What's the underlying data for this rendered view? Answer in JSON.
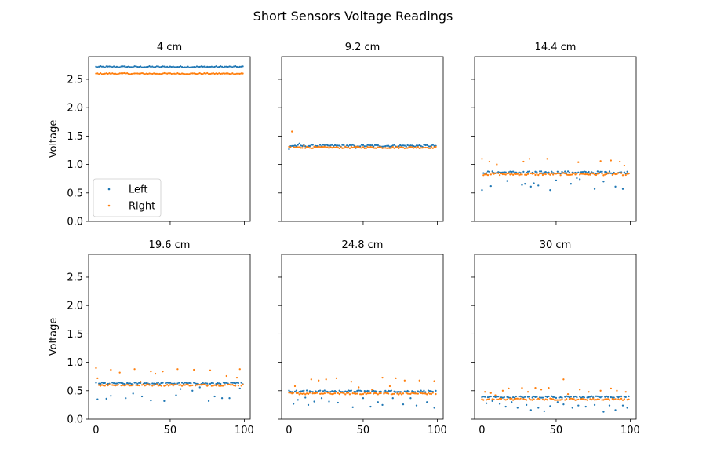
{
  "title": "Short Sensors Voltage Readings",
  "colors": {
    "left": "#1f77b4",
    "right": "#ff7f0e"
  },
  "chart_data": {
    "type": "scatter",
    "title": "Short Sensors Voltage Readings",
    "layout": "2x3 subplots, shared y-axis",
    "ylabel": "Voltage",
    "xlim": [
      -5,
      104
    ],
    "ylim": [
      0,
      2.9
    ],
    "xticks": [
      0,
      50,
      100
    ],
    "yticks": [
      0.0,
      0.5,
      1.0,
      1.5,
      2.0,
      2.5
    ],
    "ytick_labels": [
      "0.0",
      "0.5",
      "1.0",
      "1.5",
      "2.0",
      "2.5"
    ],
    "legend": {
      "placement": "lower-left (first subplot)",
      "entries": [
        "Left",
        "Right"
      ]
    },
    "n_samples": 100,
    "series_names": [
      "Left",
      "Right"
    ],
    "panels": [
      {
        "title": "4 cm",
        "left": {
          "base": 2.72,
          "jitter": 0.012,
          "outliers": []
        },
        "right": {
          "base": 2.6,
          "jitter": 0.01,
          "outliers": []
        }
      },
      {
        "title": "9.2 cm",
        "left": {
          "base": 1.33,
          "jitter": 0.018,
          "outliers": [
            [
              0,
              1.27
            ],
            [
              7,
              1.37
            ],
            [
              45,
              1.29
            ]
          ]
        },
        "right": {
          "base": 1.3,
          "jitter": 0.015,
          "outliers": [
            [
              2,
              1.58
            ],
            [
              10,
              1.33
            ]
          ]
        }
      },
      {
        "title": "14.4 cm",
        "left": {
          "base": 0.86,
          "jitter": 0.02,
          "outliers": [
            [
              0,
              0.55
            ],
            [
              6,
              0.62
            ],
            [
              17,
              0.71
            ],
            [
              27,
              0.64
            ],
            [
              29,
              0.66
            ],
            [
              33,
              0.61
            ],
            [
              35,
              0.67
            ],
            [
              38,
              0.63
            ],
            [
              46,
              0.55
            ],
            [
              50,
              0.72
            ],
            [
              60,
              0.66
            ],
            [
              64,
              0.76
            ],
            [
              66,
              0.74
            ],
            [
              76,
              0.57
            ],
            [
              82,
              0.7
            ],
            [
              90,
              0.61
            ],
            [
              95,
              0.57
            ]
          ]
        },
        "right": {
          "base": 0.83,
          "jitter": 0.02,
          "outliers": [
            [
              0,
              1.1
            ],
            [
              5,
              1.05
            ],
            [
              10,
              1.0
            ],
            [
              28,
              1.05
            ],
            [
              32,
              1.1
            ],
            [
              44,
              1.1
            ],
            [
              65,
              1.04
            ],
            [
              80,
              1.06
            ],
            [
              87,
              1.07
            ],
            [
              93,
              1.05
            ],
            [
              96,
              0.98
            ]
          ]
        }
      },
      {
        "title": "19.6 cm",
        "left": {
          "base": 0.63,
          "jitter": 0.015,
          "outliers": [
            [
              1,
              0.35
            ],
            [
              7,
              0.36
            ],
            [
              10,
              0.41
            ],
            [
              20,
              0.37
            ],
            [
              25,
              0.45
            ],
            [
              31,
              0.4
            ],
            [
              37,
              0.33
            ],
            [
              46,
              0.32
            ],
            [
              54,
              0.42
            ],
            [
              57,
              0.53
            ],
            [
              65,
              0.5
            ],
            [
              70,
              0.56
            ],
            [
              76,
              0.32
            ],
            [
              80,
              0.4
            ],
            [
              85,
              0.37
            ],
            [
              90,
              0.37
            ],
            [
              97,
              0.54
            ]
          ]
        },
        "right": {
          "base": 0.6,
          "jitter": 0.015,
          "outliers": [
            [
              0,
              0.9
            ],
            [
              1,
              0.72
            ],
            [
              10,
              0.87
            ],
            [
              16,
              0.82
            ],
            [
              26,
              0.88
            ],
            [
              30,
              0.66
            ],
            [
              37,
              0.84
            ],
            [
              40,
              0.8
            ],
            [
              45,
              0.84
            ],
            [
              55,
              0.88
            ],
            [
              66,
              0.87
            ],
            [
              77,
              0.86
            ],
            [
              88,
              0.76
            ],
            [
              95,
              0.73
            ],
            [
              97,
              0.88
            ]
          ]
        }
      },
      {
        "title": "24.8 cm",
        "left": {
          "base": 0.49,
          "jitter": 0.015,
          "outliers": [
            [
              3,
              0.27
            ],
            [
              6,
              0.34
            ],
            [
              11,
              0.38
            ],
            [
              13,
              0.25
            ],
            [
              17,
              0.31
            ],
            [
              22,
              0.37
            ],
            [
              27,
              0.31
            ],
            [
              33,
              0.29
            ],
            [
              43,
              0.21
            ],
            [
              50,
              0.37
            ],
            [
              55,
              0.22
            ],
            [
              60,
              0.3
            ],
            [
              63,
              0.25
            ],
            [
              70,
              0.37
            ],
            [
              77,
              0.26
            ],
            [
              82,
              0.37
            ],
            [
              86,
              0.24
            ],
            [
              93,
              0.3
            ],
            [
              98,
              0.2
            ]
          ]
        },
        "right": {
          "base": 0.45,
          "jitter": 0.015,
          "outliers": [
            [
              4,
              0.58
            ],
            [
              15,
              0.7
            ],
            [
              20,
              0.68
            ],
            [
              25,
              0.7
            ],
            [
              32,
              0.72
            ],
            [
              42,
              0.66
            ],
            [
              47,
              0.56
            ],
            [
              56,
              0.52
            ],
            [
              63,
              0.73
            ],
            [
              68,
              0.58
            ],
            [
              72,
              0.72
            ],
            [
              78,
              0.68
            ],
            [
              88,
              0.68
            ],
            [
              98,
              0.67
            ]
          ]
        }
      },
      {
        "title": "30 cm",
        "left": {
          "base": 0.39,
          "jitter": 0.015,
          "outliers": [
            [
              3,
              0.28
            ],
            [
              7,
              0.32
            ],
            [
              12,
              0.27
            ],
            [
              16,
              0.22
            ],
            [
              20,
              0.3
            ],
            [
              24,
              0.2
            ],
            [
              30,
              0.25
            ],
            [
              33,
              0.16
            ],
            [
              38,
              0.2
            ],
            [
              42,
              0.14
            ],
            [
              46,
              0.23
            ],
            [
              51,
              0.3
            ],
            [
              55,
              0.26
            ],
            [
              61,
              0.2
            ],
            [
              65,
              0.24
            ],
            [
              70,
              0.22
            ],
            [
              76,
              0.25
            ],
            [
              82,
              0.13
            ],
            [
              86,
              0.24
            ],
            [
              90,
              0.16
            ],
            [
              95,
              0.24
            ],
            [
              98,
              0.2
            ]
          ]
        },
        "right": {
          "base": 0.35,
          "jitter": 0.015,
          "outliers": [
            [
              2,
              0.48
            ],
            [
              6,
              0.46
            ],
            [
              9,
              0.42
            ],
            [
              14,
              0.5
            ],
            [
              18,
              0.54
            ],
            [
              27,
              0.55
            ],
            [
              31,
              0.48
            ],
            [
              36,
              0.55
            ],
            [
              40,
              0.52
            ],
            [
              45,
              0.55
            ],
            [
              55,
              0.7
            ],
            [
              58,
              0.44
            ],
            [
              66,
              0.52
            ],
            [
              72,
              0.48
            ],
            [
              80,
              0.5
            ],
            [
              87,
              0.54
            ],
            [
              91,
              0.5
            ],
            [
              97,
              0.48
            ]
          ]
        }
      }
    ]
  }
}
